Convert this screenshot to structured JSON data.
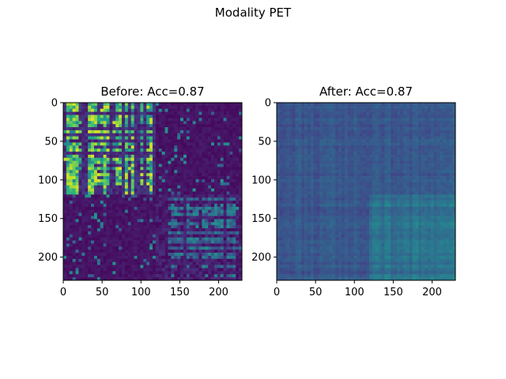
{
  "figure": {
    "suptitle": "Modality PET"
  },
  "chart_data": [
    {
      "type": "heatmap",
      "title": "Before: Acc=0.87",
      "n": 230,
      "colormap": "viridis",
      "x_ticks": [
        0,
        50,
        100,
        150,
        200
      ],
      "y_ticks": [
        0,
        50,
        100,
        150,
        200
      ],
      "xlim": [
        0,
        230
      ],
      "ylim": [
        230,
        0
      ],
      "block_boundary": 120,
      "description_of_values": [
        "top-left block 0-120 high similarity (green/cyan grid pattern)",
        "bottom-right block 120-230 medium",
        "off-diagonal low (dark purple)"
      ]
    },
    {
      "type": "heatmap",
      "title": "After: Acc=0.87",
      "n": 230,
      "colormap": "viridis",
      "x_ticks": [
        0,
        50,
        100,
        150,
        200
      ],
      "y_ticks": [
        0,
        50,
        100,
        150,
        200
      ],
      "xlim": [
        0,
        230
      ],
      "ylim": [
        230,
        0
      ],
      "block_boundary": 120
    }
  ]
}
